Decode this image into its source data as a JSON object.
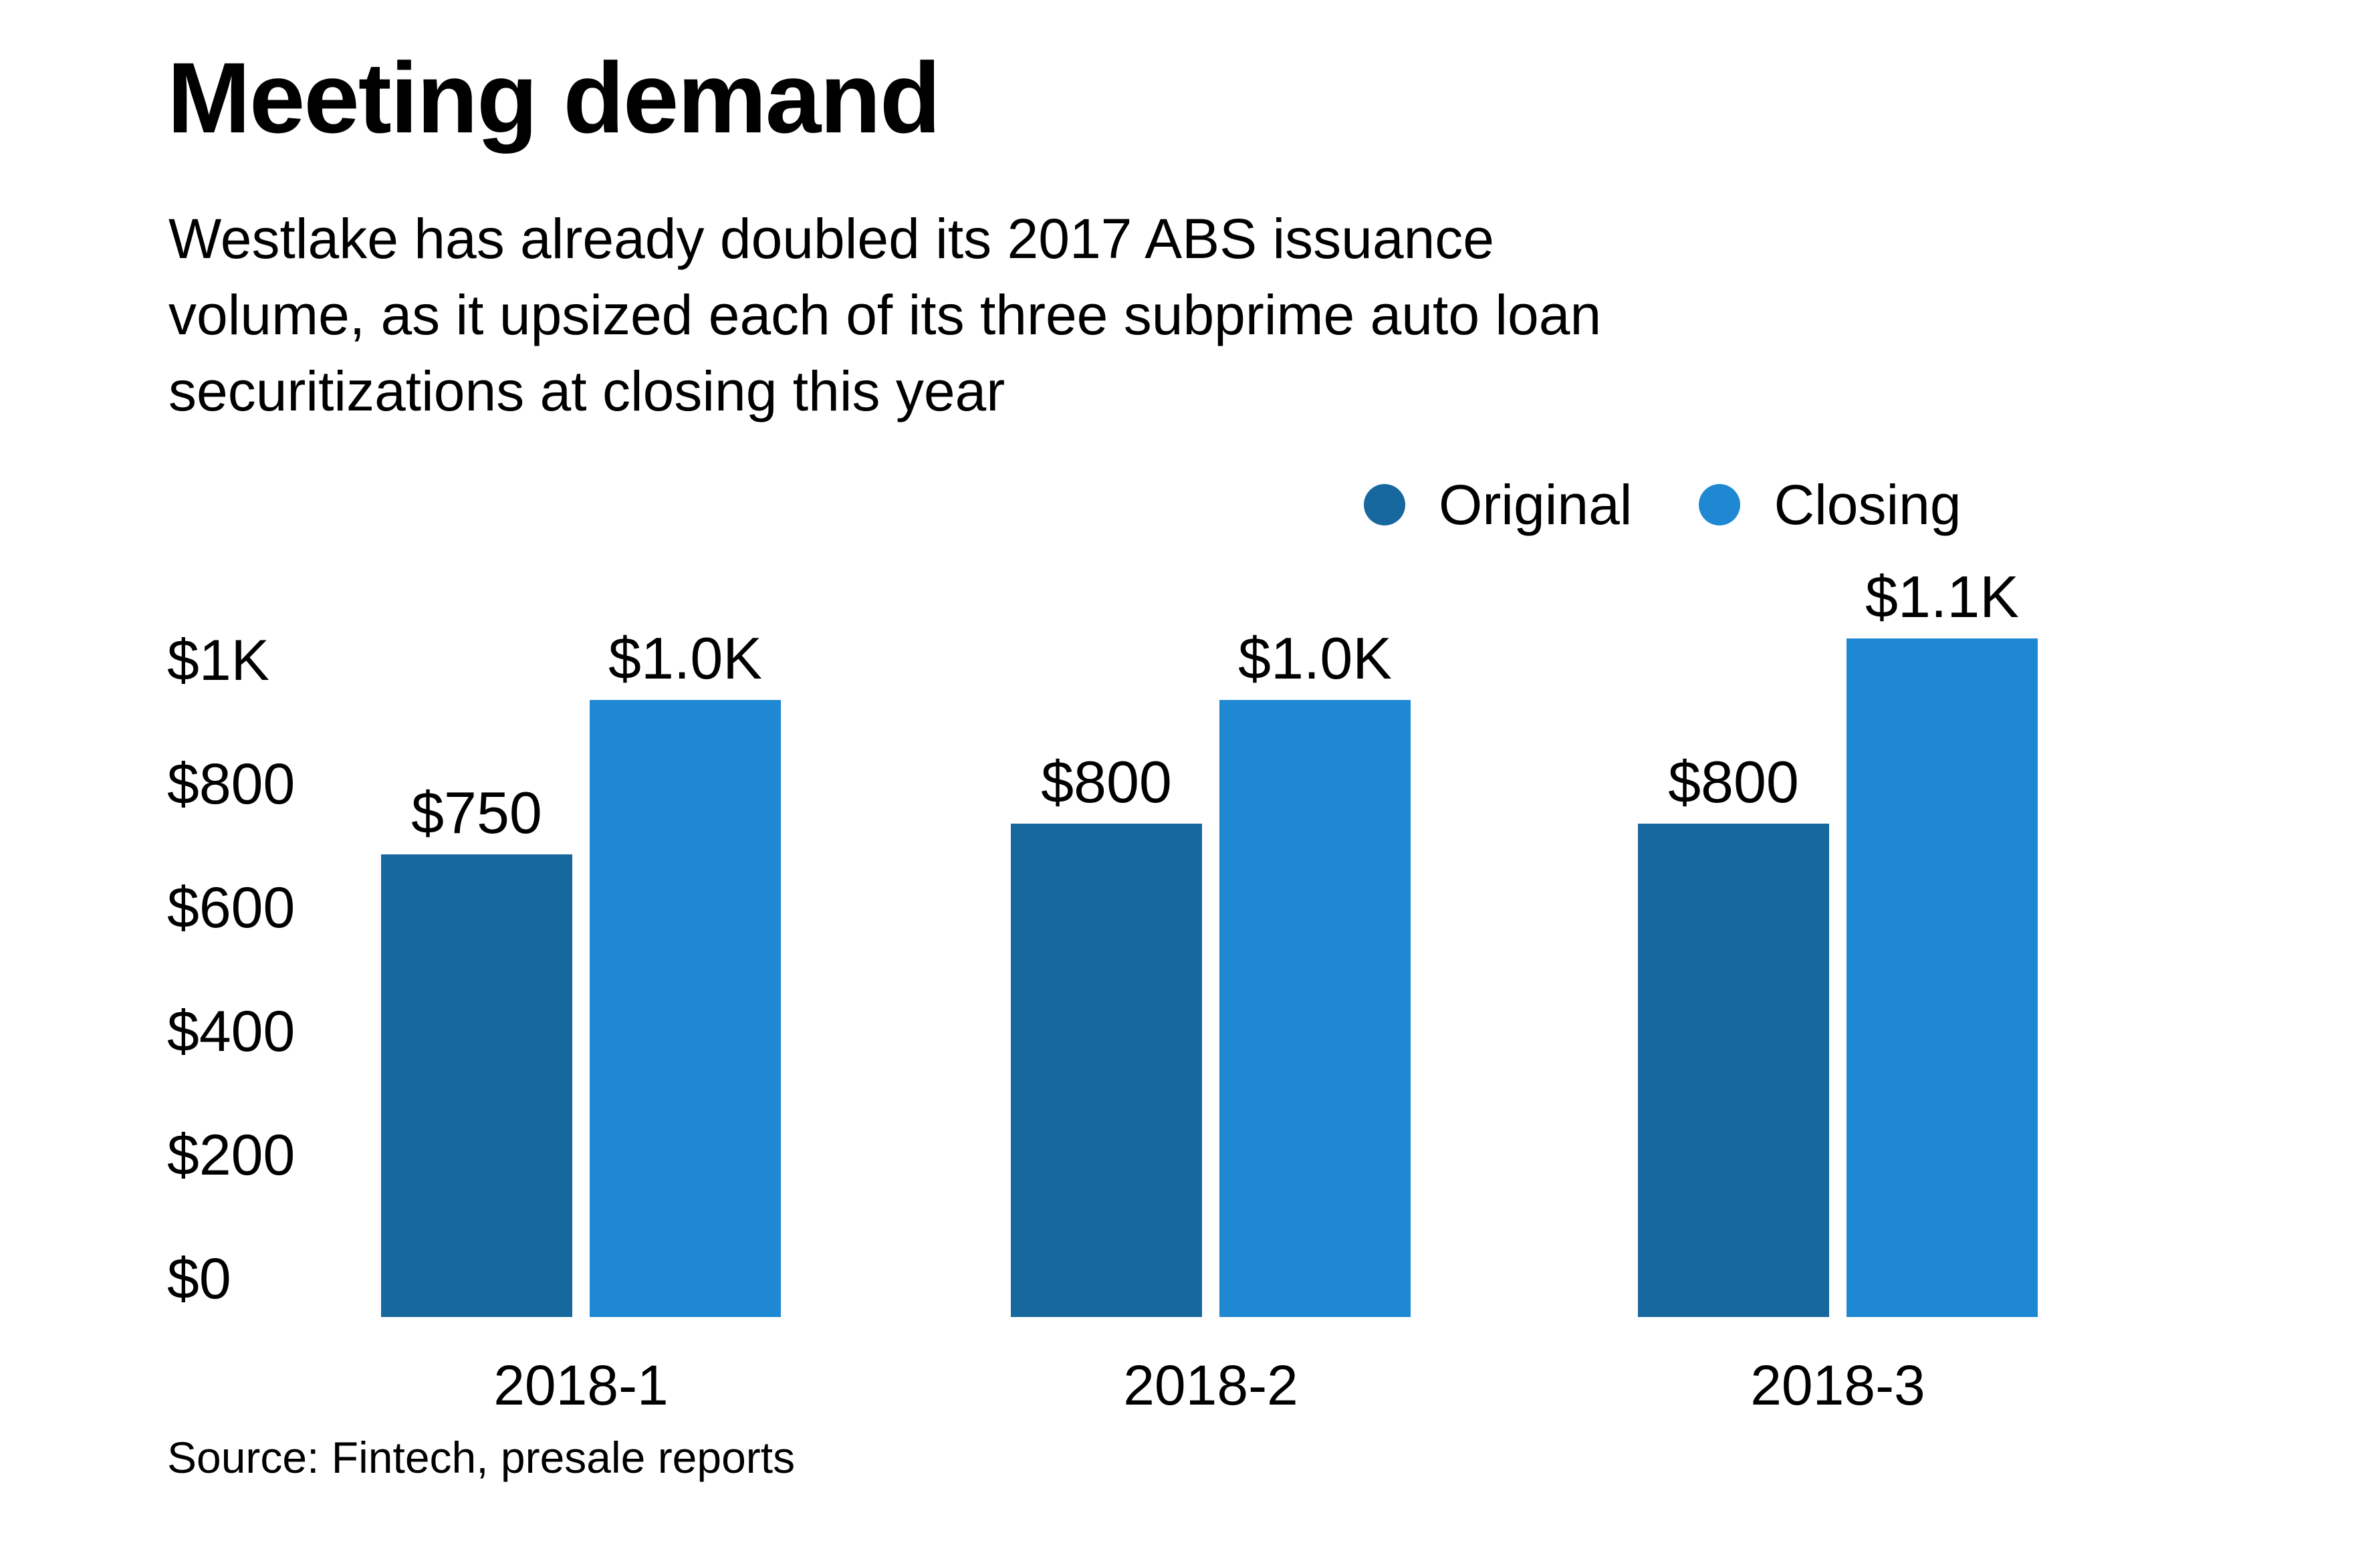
{
  "title": "Meeting demand",
  "subtitle": {
    "lines": [
      "Westlake has already doubled its 2017 ABS issuance",
      "volume, as it upsized each of its three subprime auto loan",
      "securitizations at closing this year"
    ]
  },
  "legend": {
    "items": [
      {
        "label": "Original",
        "color": "#17689E"
      },
      {
        "label": "Closing",
        "color": "#1E88D2"
      }
    ]
  },
  "source": "Source: Fintech, presale reports",
  "colors": {
    "original_bar": "#17689E",
    "closing_bar": "#1E88D2",
    "text": "#000000",
    "background": "#FFFFFF"
  },
  "chart_data": {
    "type": "bar",
    "title": "Meeting demand",
    "subtitle": "Westlake has already doubled its 2017 ABS issuance volume, as it upsized each of its three subprime auto loan securitizations at closing this year",
    "categories": [
      "2018-1",
      "2018-2",
      "2018-3"
    ],
    "series": [
      {
        "name": "Original",
        "color": "#17689E",
        "values": [
          750,
          800,
          800
        ],
        "labels": [
          "$750",
          "$800",
          "$800"
        ]
      },
      {
        "name": "Closing",
        "color": "#1E88D2",
        "values": [
          1000,
          1000,
          1100
        ],
        "labels": [
          "$1.0K",
          "$1.0K",
          "$1.1K"
        ]
      }
    ],
    "xlabel": "",
    "ylabel": "",
    "ylim": [
      0,
      1100
    ],
    "yticks": [
      {
        "label": "$1K",
        "value": 1000
      },
      {
        "label": "$800",
        "value": 800
      },
      {
        "label": "$600",
        "value": 600
      },
      {
        "label": "$400",
        "value": 400
      },
      {
        "label": "$200",
        "value": 200
      },
      {
        "label": "$0",
        "value": 0
      }
    ],
    "grid": false,
    "legend_position": "top-right",
    "value_labels_shown": true
  }
}
